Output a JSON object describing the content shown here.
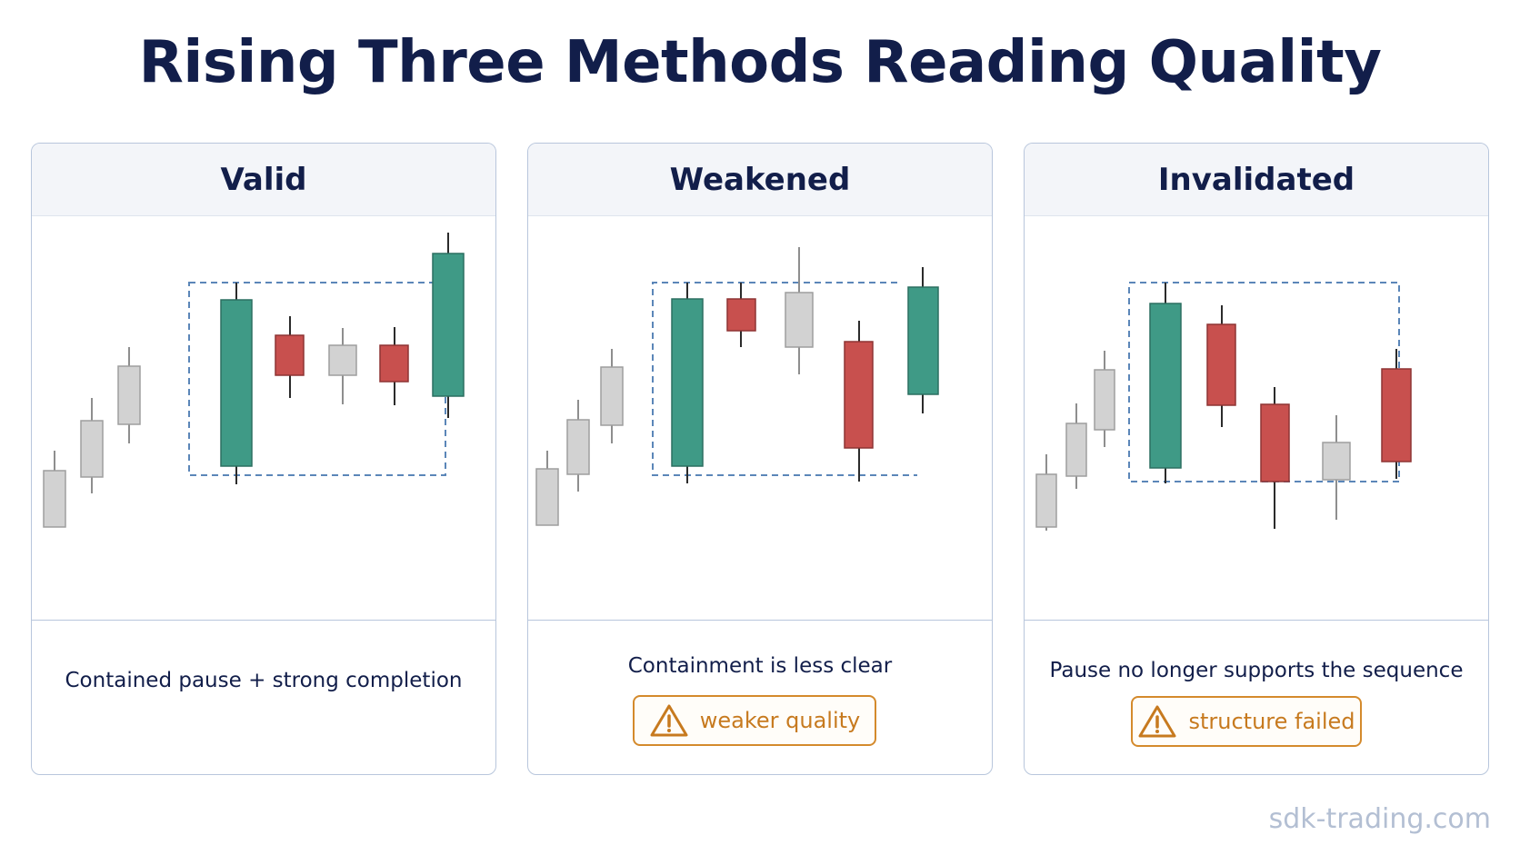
{
  "title": "Rising Three Methods Reading Quality",
  "colors": {
    "bull": "#3f9a86",
    "bear": "#c8504e",
    "neutral": "#d0d0d0",
    "box": "#5b86b8",
    "warning": "#d48a2c"
  },
  "panels": [
    {
      "heading": "Valid",
      "caption": "Contained pause + strong completion",
      "badge": null
    },
    {
      "heading": "Weakened",
      "caption": "Containment is less clear",
      "badge": {
        "icon": "warning-icon",
        "label": "weaker quality"
      }
    },
    {
      "heading": "Invalidated",
      "caption": "Pause no longer supports the sequence",
      "badge": {
        "icon": "warning-icon",
        "label": "structure failed"
      }
    }
  ],
  "watermark": "sdk-trading.com"
}
